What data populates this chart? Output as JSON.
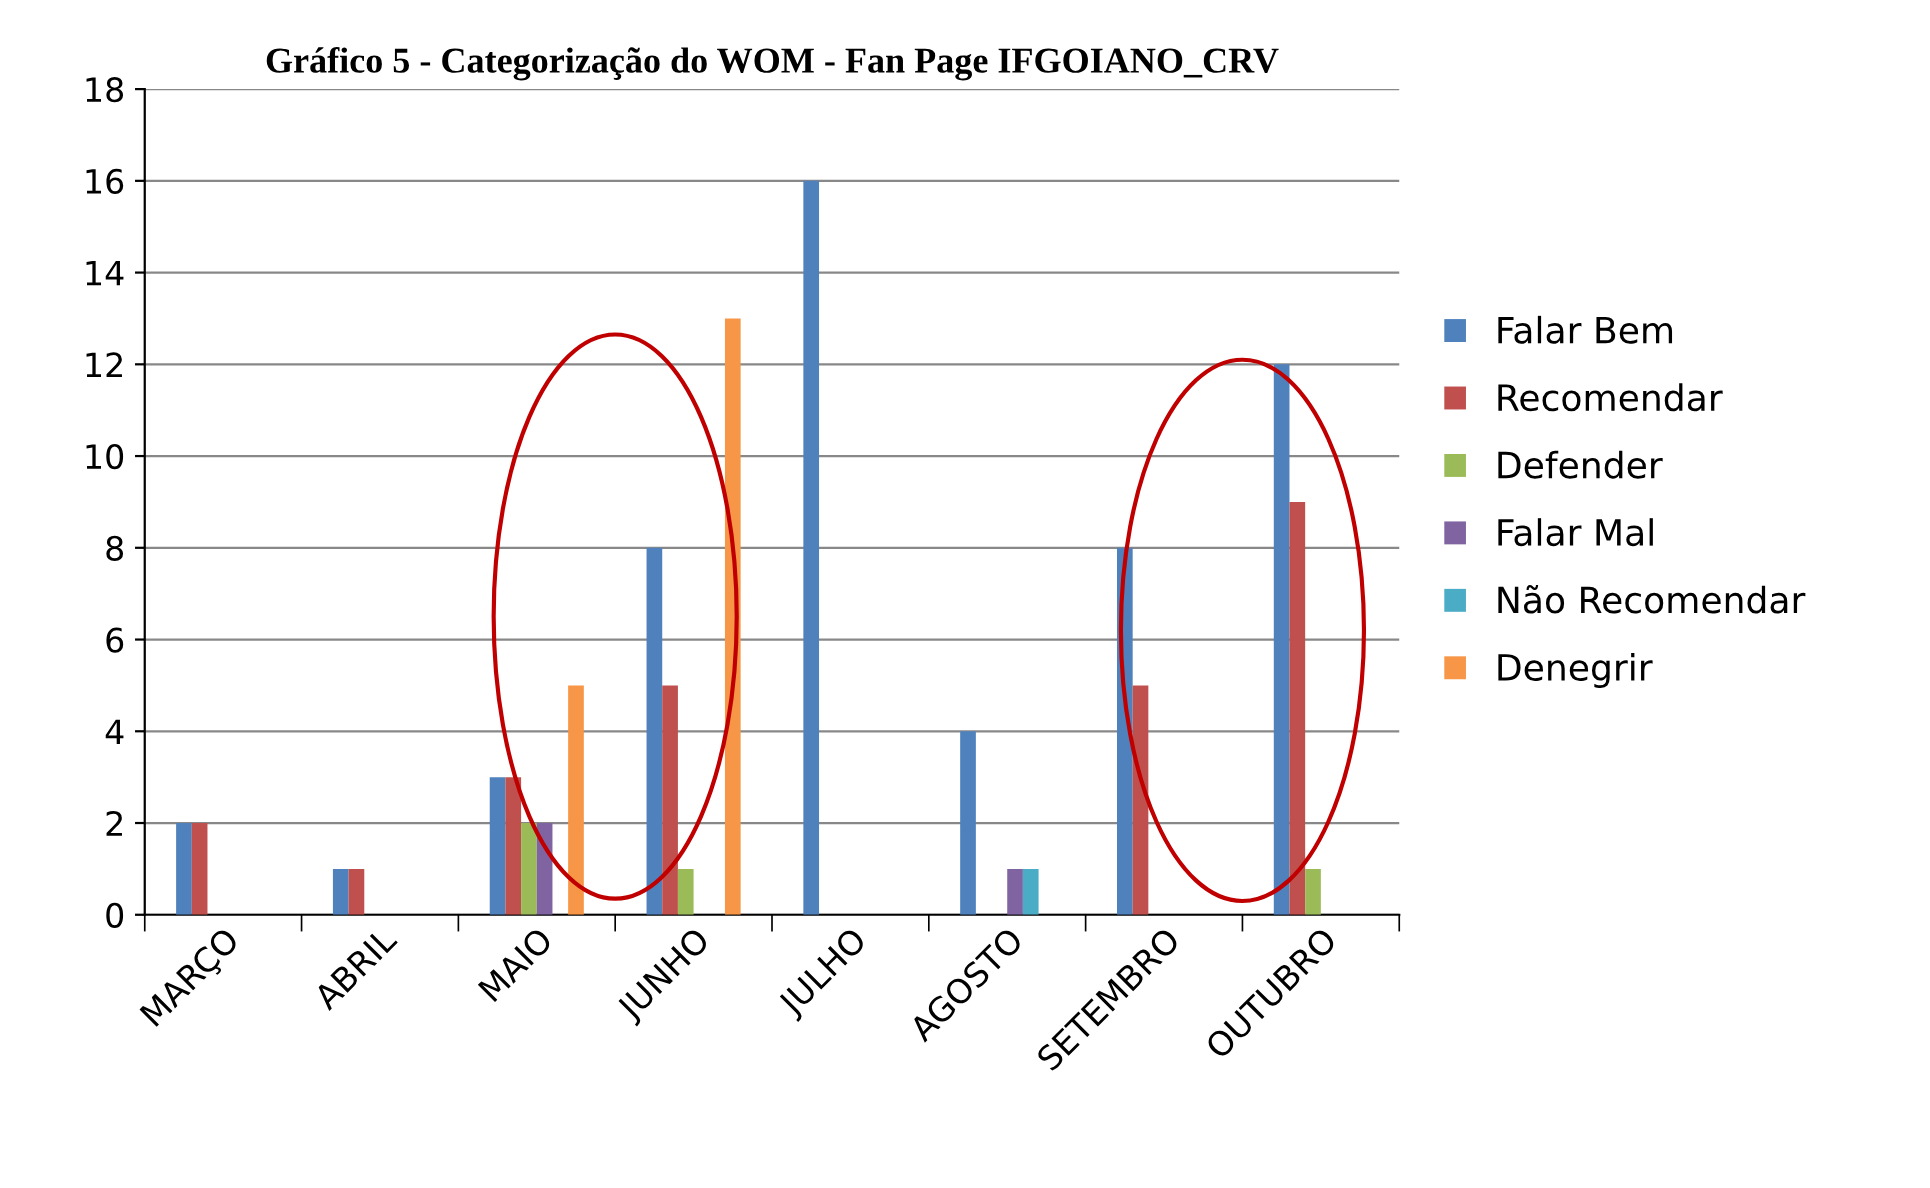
{
  "chart_data": {
    "type": "bar",
    "title": "Gráfico 5 - Categorização do WOM - Fan Page IFGOIANO_CRV",
    "categories": [
      "MARÇO",
      "ABRIL",
      "MAIO",
      "JUNHO",
      "JULHO",
      "AGOSTO",
      "SETEMBRO",
      "OUTUBRO"
    ],
    "series": [
      {
        "name": "Falar Bem",
        "color": "#4f81bd",
        "values": [
          2,
          1,
          3,
          8,
          16,
          4,
          8,
          12
        ]
      },
      {
        "name": "Recomendar",
        "color": "#c0504d",
        "values": [
          2,
          1,
          3,
          5,
          0,
          0,
          5,
          9
        ]
      },
      {
        "name": "Defender",
        "color": "#9bbb59",
        "values": [
          0,
          0,
          2,
          1,
          0,
          0,
          0,
          1
        ]
      },
      {
        "name": "Falar Mal",
        "color": "#8064a2",
        "values": [
          0,
          0,
          2,
          0,
          0,
          1,
          0,
          0
        ]
      },
      {
        "name": "Não Recomendar",
        "color": "#4bacc6",
        "values": [
          0,
          0,
          0,
          0,
          0,
          1,
          0,
          0
        ]
      },
      {
        "name": "Denegrir",
        "color": "#f79646",
        "values": [
          0,
          0,
          5,
          13,
          0,
          0,
          0,
          0
        ]
      }
    ],
    "ylim": [
      0,
      18
    ],
    "yticks": [
      0,
      2,
      4,
      6,
      8,
      10,
      12,
      14,
      16,
      18
    ],
    "grid": "y",
    "legend": "right"
  }
}
